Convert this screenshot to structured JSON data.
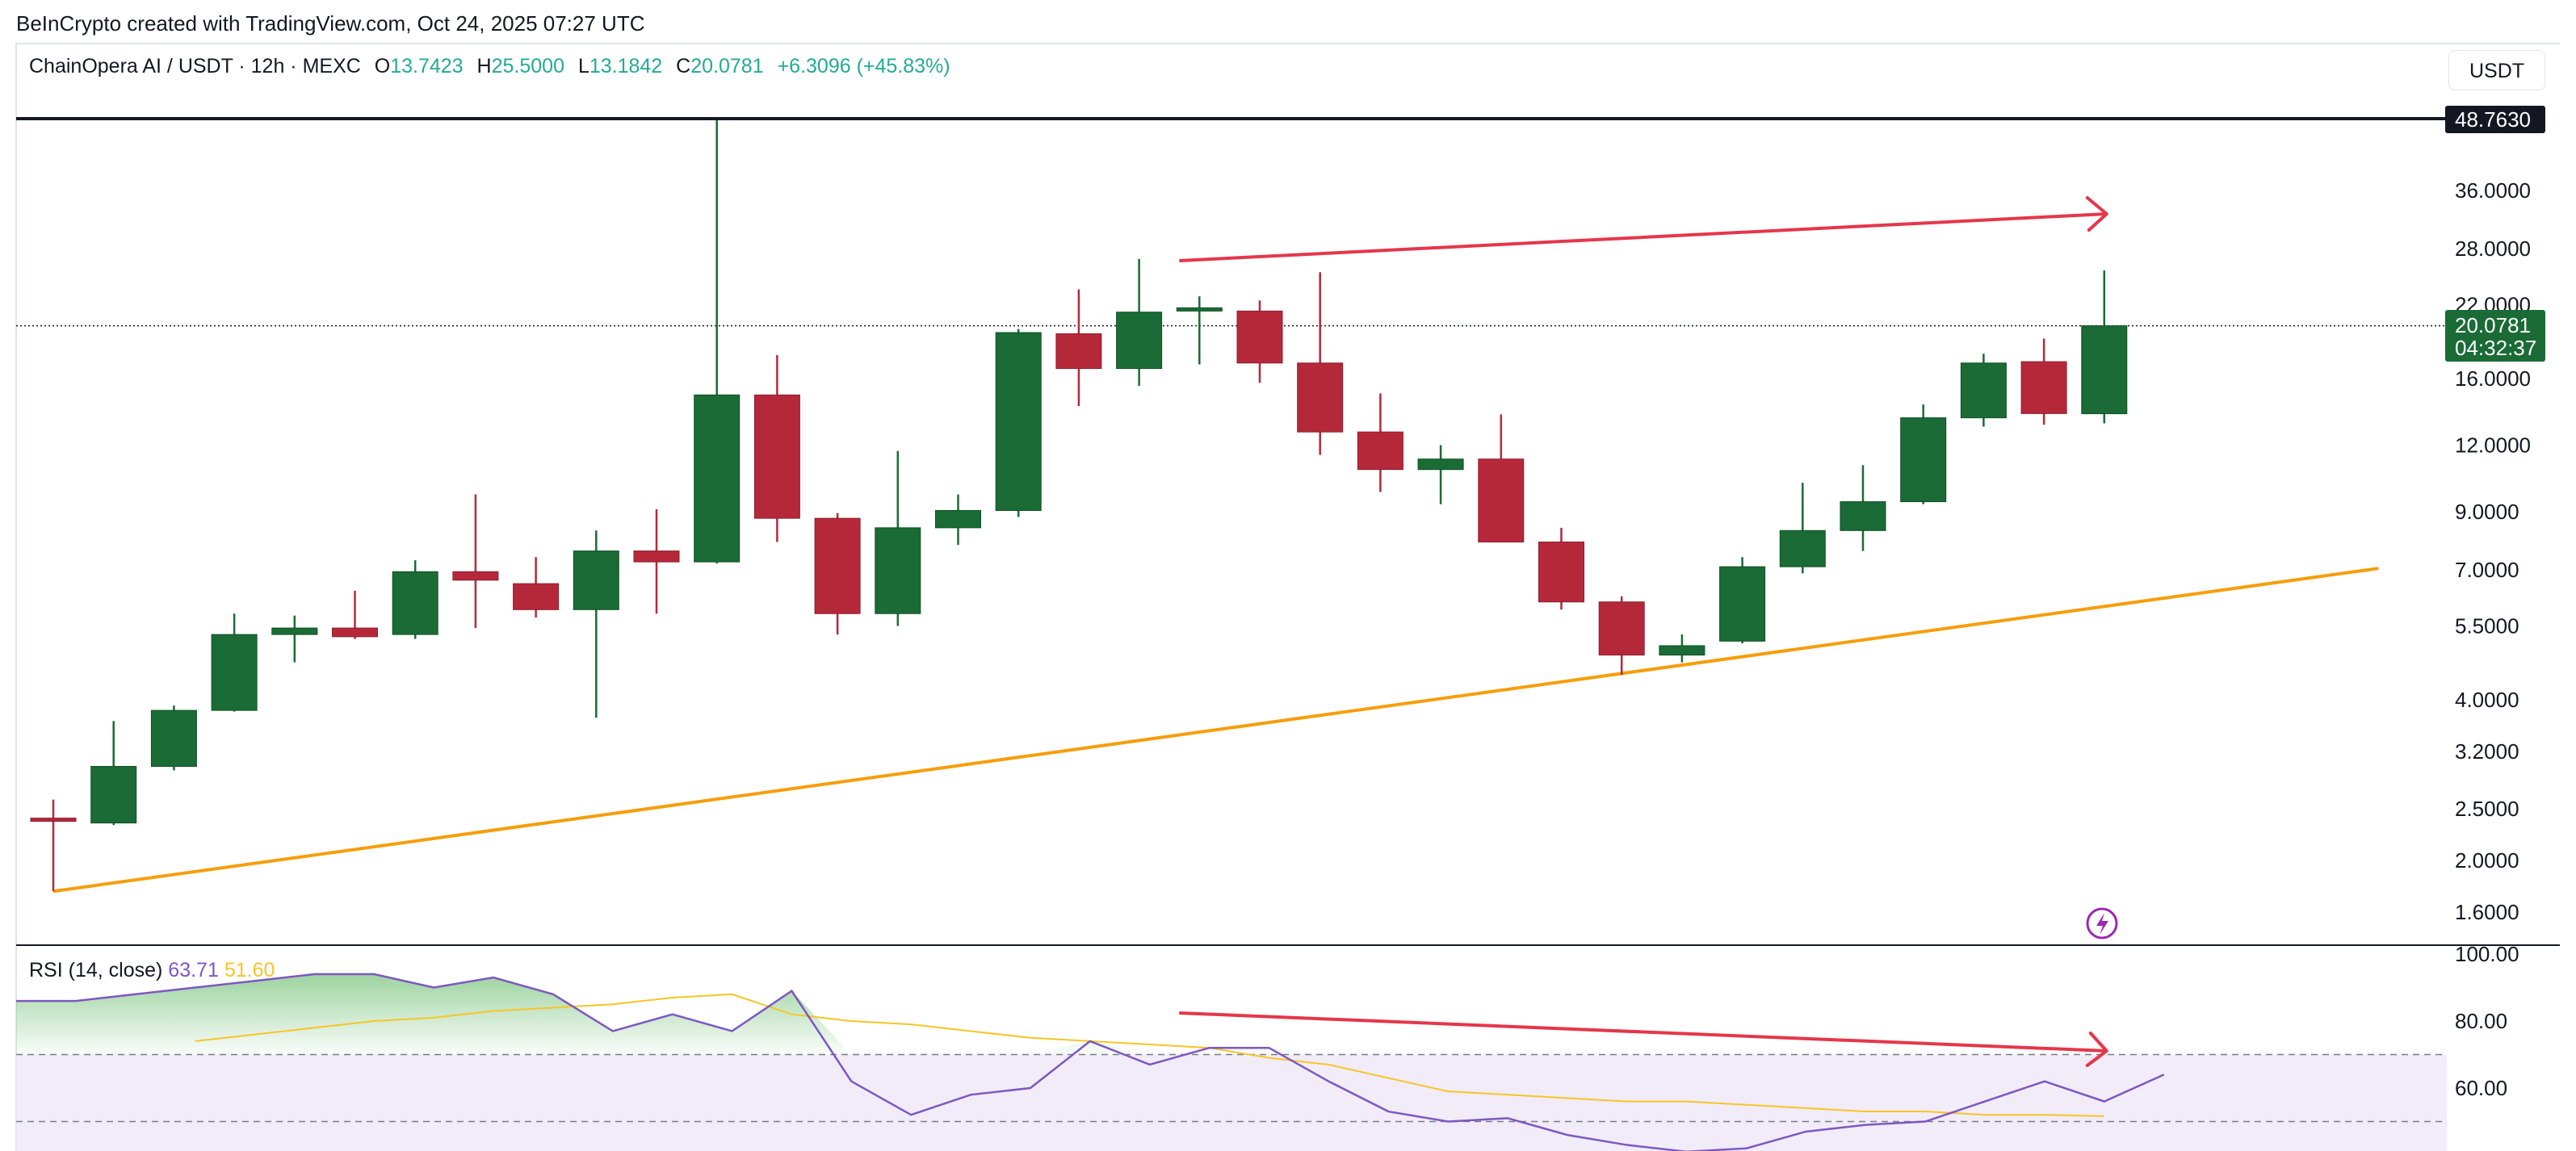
{
  "attribution": "BeInCrypto created with TradingView.com, Oct 24, 2025 07:27 UTC",
  "legend": {
    "symbol": "ChainOpera AI / USDT · 12h · MEXC",
    "open_label": "O",
    "open": "13.7423",
    "high_label": "H",
    "high": "25.5000",
    "low_label": "L",
    "low": "13.1842",
    "close_label": "C",
    "close": "20.0781",
    "change": "+6.3096 (+45.83%)"
  },
  "currency_button": "USDT",
  "rsi_legend": {
    "label": "RSI (14, close)",
    "rsi_value": "63.71",
    "ma_value": "51.60"
  },
  "price_badges": {
    "high": "48.7630",
    "last": "20.0781",
    "countdown": "04:32:37"
  },
  "colors": {
    "up": "#1a6b35",
    "down": "#b5283a",
    "trendline": "#f59e0b",
    "arrow": "#e5364a",
    "rsi": "#7e57c2",
    "rsi_ma": "#f7c525"
  },
  "chart_data": [
    {
      "type": "candlestick",
      "title": "ChainOpera AI / USDT · 12h · MEXC",
      "scale": "log",
      "y_ticks": [
        "36.0000",
        "28.0000",
        "22.0000",
        "16.0000",
        "12.0000",
        "9.0000",
        "7.0000",
        "5.5000",
        "4.0000",
        "3.2000",
        "2.5000",
        "2.0000",
        "1.6000"
      ],
      "candles": [
        {
          "o": 2.4,
          "h": 2.6,
          "l": 1.75,
          "c": 2.38
        },
        {
          "o": 2.35,
          "h": 3.65,
          "l": 2.33,
          "c": 3.0
        },
        {
          "o": 3.0,
          "h": 3.9,
          "l": 2.95,
          "c": 3.82
        },
        {
          "o": 3.82,
          "h": 5.8,
          "l": 3.8,
          "c": 5.3
        },
        {
          "o": 5.3,
          "h": 5.75,
          "l": 4.7,
          "c": 5.45
        },
        {
          "o": 5.45,
          "h": 6.4,
          "l": 5.2,
          "c": 5.25
        },
        {
          "o": 5.3,
          "h": 7.3,
          "l": 5.2,
          "c": 6.95
        },
        {
          "o": 6.95,
          "h": 9.7,
          "l": 5.45,
          "c": 6.7
        },
        {
          "o": 6.6,
          "h": 7.4,
          "l": 5.7,
          "c": 5.9
        },
        {
          "o": 5.9,
          "h": 8.3,
          "l": 3.7,
          "c": 7.6
        },
        {
          "o": 7.6,
          "h": 9.1,
          "l": 5.8,
          "c": 7.25
        },
        {
          "o": 7.25,
          "h": 48.76,
          "l": 7.2,
          "c": 14.9
        },
        {
          "o": 14.9,
          "h": 17.7,
          "l": 7.9,
          "c": 8.75
        },
        {
          "o": 8.75,
          "h": 8.95,
          "l": 5.3,
          "c": 5.8
        },
        {
          "o": 5.8,
          "h": 11.7,
          "l": 5.5,
          "c": 8.4
        },
        {
          "o": 8.4,
          "h": 9.7,
          "l": 7.8,
          "c": 9.05
        },
        {
          "o": 9.05,
          "h": 19.8,
          "l": 8.8,
          "c": 19.5
        },
        {
          "o": 19.4,
          "h": 23.5,
          "l": 14.2,
          "c": 16.7
        },
        {
          "o": 16.7,
          "h": 26.8,
          "l": 15.5,
          "c": 21.3
        },
        {
          "o": 21.7,
          "h": 22.8,
          "l": 17.0,
          "c": 21.7
        },
        {
          "o": 21.4,
          "h": 22.4,
          "l": 15.7,
          "c": 17.1
        },
        {
          "o": 17.1,
          "h": 25.3,
          "l": 11.5,
          "c": 12.7
        },
        {
          "o": 12.7,
          "h": 15.0,
          "l": 9.8,
          "c": 10.8
        },
        {
          "o": 10.8,
          "h": 12.0,
          "l": 9.3,
          "c": 11.3
        },
        {
          "o": 11.3,
          "h": 13.7,
          "l": 7.9,
          "c": 7.9
        },
        {
          "o": 7.9,
          "h": 8.4,
          "l": 5.9,
          "c": 6.1
        },
        {
          "o": 6.1,
          "h": 6.25,
          "l": 4.45,
          "c": 4.85
        },
        {
          "o": 4.85,
          "h": 5.3,
          "l": 4.7,
          "c": 5.05
        },
        {
          "o": 5.15,
          "h": 7.4,
          "l": 5.1,
          "c": 7.1
        },
        {
          "o": 7.1,
          "h": 10.2,
          "l": 6.9,
          "c": 8.3
        },
        {
          "o": 8.3,
          "h": 11.0,
          "l": 7.6,
          "c": 9.4
        },
        {
          "o": 9.4,
          "h": 14.3,
          "l": 9.3,
          "c": 13.5
        },
        {
          "o": 13.5,
          "h": 17.8,
          "l": 13.0,
          "c": 17.1
        },
        {
          "o": 17.2,
          "h": 19.0,
          "l": 13.1,
          "c": 13.75
        },
        {
          "o": 13.74,
          "h": 25.5,
          "l": 13.18,
          "c": 20.08
        }
      ],
      "trendline": [
        {
          "i": 0,
          "price": 1.75
        },
        {
          "i": 39,
          "price": 7.05
        }
      ],
      "resistance_arrow": [
        {
          "i": 19,
          "price": 26.8
        },
        {
          "i": 34,
          "price": 33.5
        }
      ],
      "high_line": 48.763
    },
    {
      "type": "line",
      "title": "RSI (14, close)",
      "ylim": [
        40,
        100
      ],
      "y_ticks": [
        "100.00",
        "80.00",
        "60.00"
      ],
      "bands": [
        50,
        70
      ],
      "series": [
        {
          "name": "RSI",
          "values": [
            86,
            86,
            88,
            90,
            92,
            94,
            94,
            90,
            93,
            88,
            77,
            82,
            77,
            89,
            62,
            52,
            58,
            60,
            74,
            67,
            72,
            72,
            62,
            53,
            50,
            51,
            46,
            43,
            41,
            42,
            47,
            49,
            50,
            56,
            62,
            56,
            64
          ]
        },
        {
          "name": "RSI-based MA",
          "start": 3,
          "values": [
            74,
            76,
            78,
            80,
            81,
            83,
            84,
            85,
            87,
            88,
            82,
            80,
            79,
            77,
            75,
            74,
            73,
            72,
            69,
            67,
            63,
            59,
            58,
            57,
            56,
            56,
            55,
            54,
            53,
            53,
            52,
            52,
            51.6
          ]
        }
      ],
      "divergence_arrow": [
        {
          "i": 19,
          "value": 77
        },
        {
          "i": 34,
          "value": 70
        }
      ]
    }
  ]
}
